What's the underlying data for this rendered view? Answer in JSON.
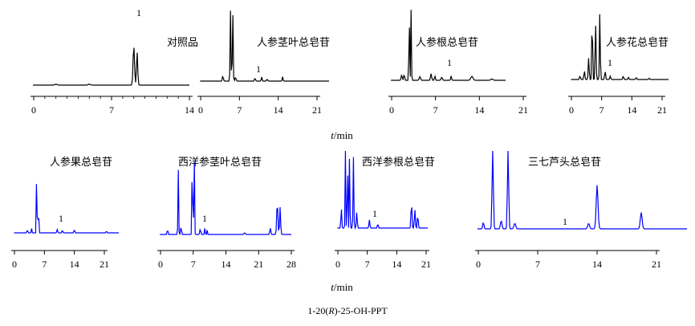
{
  "chart_data": [
    {
      "type": "line",
      "label": "对照品",
      "color": "#000000",
      "axis_ticks": [
        0,
        7,
        14
      ],
      "xlim": [
        0,
        14
      ],
      "peak_label": "1",
      "peaks": [
        [
          9.0,
          0.9,
          0.18
        ],
        [
          9.3,
          0.75,
          0.15
        ],
        [
          2.0,
          0.02,
          0.3
        ],
        [
          5.0,
          0.02,
          0.3
        ]
      ]
    },
    {
      "type": "line",
      "label": "人参茎叶总皂苷",
      "color": "#000000",
      "axis_ticks": [
        0,
        7,
        14,
        21
      ],
      "xlim": [
        0,
        21
      ],
      "peak_label": "1",
      "peaks": [
        [
          4.0,
          0.12,
          0.25
        ],
        [
          5.4,
          1.6,
          0.2
        ],
        [
          5.8,
          1.6,
          0.2
        ],
        [
          6.3,
          0.08,
          0.3
        ],
        [
          9.8,
          0.07,
          0.25
        ],
        [
          11.0,
          0.1,
          0.2
        ],
        [
          12.0,
          0.04,
          0.3
        ],
        [
          14.8,
          0.1,
          0.2
        ]
      ]
    },
    {
      "type": "line",
      "label": "人参根总皂苷",
      "color": "#000000",
      "axis_ticks": [
        0,
        7,
        14,
        21
      ],
      "xlim": [
        0,
        21
      ],
      "peak_label": "1",
      "peaks": [
        [
          1.6,
          0.12,
          0.25
        ],
        [
          2.0,
          0.15,
          0.2
        ],
        [
          2.8,
          1.6,
          0.15
        ],
        [
          3.1,
          1.6,
          0.15
        ],
        [
          4.5,
          0.08,
          0.3
        ],
        [
          6.3,
          0.15,
          0.25
        ],
        [
          6.9,
          0.1,
          0.2
        ],
        [
          8.0,
          0.07,
          0.3
        ],
        [
          9.5,
          0.1,
          0.2
        ],
        [
          12.8,
          0.09,
          0.5
        ],
        [
          16.0,
          0.03,
          0.5
        ]
      ]
    },
    {
      "type": "line",
      "label": "人参花总皂苷",
      "color": "#000000",
      "axis_ticks": [
        0,
        7,
        14,
        21
      ],
      "xlim": [
        0,
        21
      ],
      "peak_label": "1",
      "peaks": [
        [
          2.0,
          0.08,
          0.3
        ],
        [
          3.0,
          0.2,
          0.3
        ],
        [
          4.0,
          0.5,
          0.3
        ],
        [
          4.8,
          1.6,
          0.25
        ],
        [
          5.6,
          1.3,
          0.3
        ],
        [
          6.6,
          1.6,
          0.25
        ],
        [
          7.8,
          0.2,
          0.3
        ],
        [
          9.0,
          0.08,
          0.3
        ],
        [
          12.0,
          0.08,
          0.3
        ],
        [
          13.2,
          0.05,
          0.3
        ],
        [
          15.0,
          0.05,
          0.3
        ],
        [
          18.0,
          0.03,
          0.3
        ]
      ]
    },
    {
      "type": "line",
      "label": "人参果总皂苷",
      "color": "#0000ff",
      "axis_ticks": [
        0,
        7,
        14,
        21
      ],
      "xlim": [
        0,
        21
      ],
      "peak_label": "1",
      "peaks": [
        [
          3.0,
          0.05,
          0.3
        ],
        [
          4.0,
          0.08,
          0.2
        ],
        [
          5.2,
          1.6,
          0.18
        ],
        [
          5.6,
          0.6,
          0.2
        ],
        [
          10.0,
          0.06,
          0.3
        ],
        [
          11.2,
          0.08,
          0.2
        ],
        [
          14.0,
          0.07,
          0.25
        ],
        [
          21.5,
          0.03,
          0.3
        ]
      ]
    },
    {
      "type": "line",
      "label": "西洋参茎叶总皂苷",
      "color": "#0000ff",
      "axis_ticks": [
        0,
        7,
        14,
        21,
        28
      ],
      "xlim": [
        0,
        28
      ],
      "peak_label": "1",
      "peaks": [
        [
          1.5,
          0.12,
          0.2
        ],
        [
          3.8,
          1.2,
          0.2
        ],
        [
          4.4,
          0.2,
          0.2
        ],
        [
          6.8,
          1.6,
          0.2
        ],
        [
          7.2,
          1.6,
          0.2
        ],
        [
          8.5,
          0.1,
          0.3
        ],
        [
          9.5,
          0.12,
          0.2
        ],
        [
          10.0,
          0.08,
          0.2
        ],
        [
          18.0,
          0.03,
          0.4
        ],
        [
          23.5,
          0.12,
          0.3
        ],
        [
          25.0,
          0.6,
          0.35
        ],
        [
          25.6,
          0.5,
          0.3
        ]
      ]
    },
    {
      "type": "line",
      "label": "西洋参根总皂苷",
      "color": "#0000ff",
      "axis_ticks": [
        0,
        7,
        14,
        21
      ],
      "xlim": [
        0,
        21
      ],
      "peak_label": "1",
      "peaks": [
        [
          0.8,
          0.4,
          0.25
        ],
        [
          1.8,
          1.6,
          0.2
        ],
        [
          2.3,
          1.6,
          0.2
        ],
        [
          2.8,
          1.6,
          0.2
        ],
        [
          3.7,
          1.3,
          0.25
        ],
        [
          4.5,
          0.3,
          0.3
        ],
        [
          7.5,
          0.15,
          0.3
        ],
        [
          9.5,
          0.08,
          0.3
        ],
        [
          17.5,
          0.5,
          0.3
        ],
        [
          18.3,
          0.35,
          0.3
        ],
        [
          19.0,
          0.25,
          0.3
        ]
      ]
    },
    {
      "type": "line",
      "label": "三七芦头总皂苷",
      "color": "#0000ff",
      "axis_ticks": [
        0,
        7,
        14,
        21
      ],
      "xlim": [
        0,
        21
      ],
      "peak_label": "1",
      "peaks": [
        [
          0.6,
          0.12,
          0.2
        ],
        [
          1.7,
          1.6,
          0.2
        ],
        [
          2.7,
          0.15,
          0.25
        ],
        [
          3.5,
          1.6,
          0.2
        ],
        [
          4.3,
          0.1,
          0.3
        ],
        [
          13.0,
          0.1,
          0.3
        ],
        [
          14.0,
          0.8,
          0.3
        ],
        [
          19.2,
          0.3,
          0.3
        ]
      ]
    }
  ],
  "axis_title": "t/min",
  "caption": "1-20(R)-25-OH-PPT"
}
